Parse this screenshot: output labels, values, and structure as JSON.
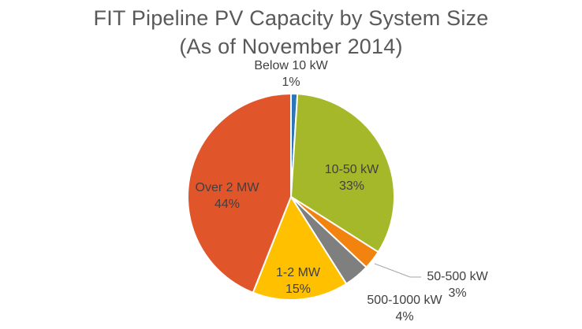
{
  "chart_data": {
    "type": "pie",
    "title_lines": [
      "FIT Pipeline PV Capacity by System Size",
      "(As of November 2014)"
    ],
    "slices": [
      {
        "label": "Below 10 kW",
        "pct_label": "1%",
        "value": 1,
        "color": "#2E75B6"
      },
      {
        "label": "10-50 kW",
        "pct_label": "33%",
        "value": 33,
        "color": "#A5B82A"
      },
      {
        "label": "50-500 kW",
        "pct_label": "3%",
        "value": 3,
        "color": "#F3830F"
      },
      {
        "label": "500-1000 kW",
        "pct_label": "4%",
        "value": 4,
        "color": "#7F7F7F"
      },
      {
        "label": "1-2 MW",
        "pct_label": "15%",
        "value": 15,
        "color": "#FFC000"
      },
      {
        "label": "Over 2 MW",
        "pct_label": "44%",
        "value": 44,
        "color": "#E1552B"
      }
    ],
    "legend": "none",
    "data_labels": "category name and percentage"
  }
}
